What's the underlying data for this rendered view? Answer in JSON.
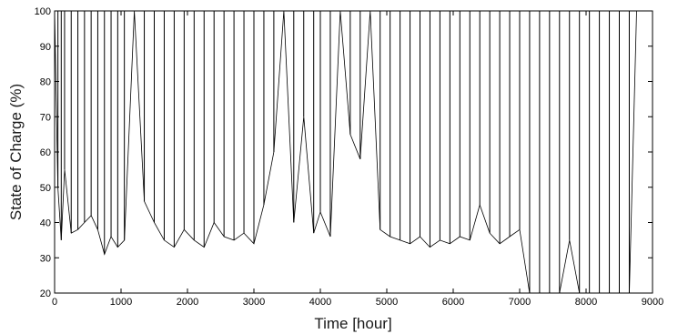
{
  "chart_data": {
    "type": "line",
    "title": "",
    "xlabel": "Time [hour]",
    "ylabel": "State of Charge (%)",
    "xlim": [
      0,
      9000
    ],
    "ylim": [
      20,
      100
    ],
    "x_ticks": [
      0,
      1000,
      2000,
      3000,
      4000,
      5000,
      6000,
      7000,
      8000,
      9000
    ],
    "y_ticks": [
      20,
      30,
      40,
      50,
      60,
      70,
      80,
      90,
      100
    ],
    "grid": false,
    "line_color": "#000000",
    "series": [
      {
        "x": [
          0,
          50,
          100,
          150,
          250,
          350,
          450,
          550,
          650,
          750,
          850,
          950,
          1050,
          1200,
          1350,
          1500,
          1650,
          1800,
          1950,
          2100,
          2250,
          2400,
          2550,
          2700,
          2850,
          3000,
          3150,
          3300,
          3450,
          3600,
          3750,
          3900,
          4000,
          4150,
          4300,
          4450,
          4600,
          4750,
          4900,
          5050,
          5200,
          5350,
          5500,
          5650,
          5800,
          5950,
          6100,
          6250,
          6400,
          6550,
          6700,
          6850,
          7000,
          7150,
          7300,
          7450,
          7600,
          7750,
          7900,
          8050,
          8200,
          8350,
          8500,
          8650,
          8760
        ],
        "values": [
          100,
          50,
          35,
          55,
          37,
          38,
          40,
          42,
          38,
          31,
          36,
          33,
          35,
          100,
          46,
          40,
          35,
          33,
          38,
          35,
          33,
          40,
          36,
          35,
          37,
          34,
          45,
          60,
          100,
          40,
          70,
          37,
          43,
          36,
          100,
          65,
          58,
          100,
          38,
          36,
          35,
          34,
          36,
          33,
          35,
          34,
          36,
          35,
          45,
          37,
          34,
          36,
          38,
          20,
          20,
          20,
          20,
          35,
          20,
          20,
          20,
          20,
          20,
          20,
          100
        ]
      }
    ]
  }
}
